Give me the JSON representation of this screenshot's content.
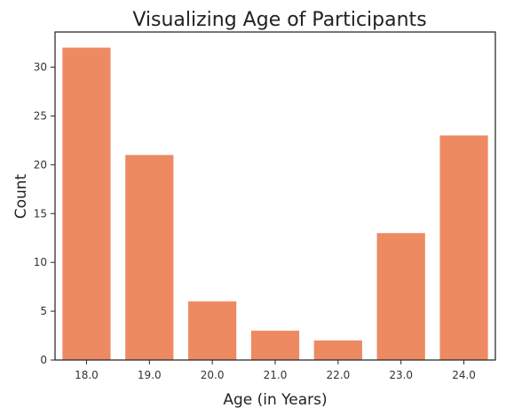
{
  "chart_data": {
    "type": "bar",
    "title": "Visualizing Age of Participants",
    "xlabel": "Age (in Years)",
    "ylabel": "Count",
    "categories": [
      "18.0",
      "19.0",
      "20.0",
      "21.0",
      "22.0",
      "23.0",
      "24.0"
    ],
    "values": [
      32,
      21,
      6,
      3,
      2,
      13,
      23
    ],
    "ylim": [
      0,
      33.6
    ],
    "yticks": [
      0,
      5,
      10,
      15,
      20,
      25,
      30
    ],
    "grid": false,
    "bar_color": "#EE8A62"
  }
}
